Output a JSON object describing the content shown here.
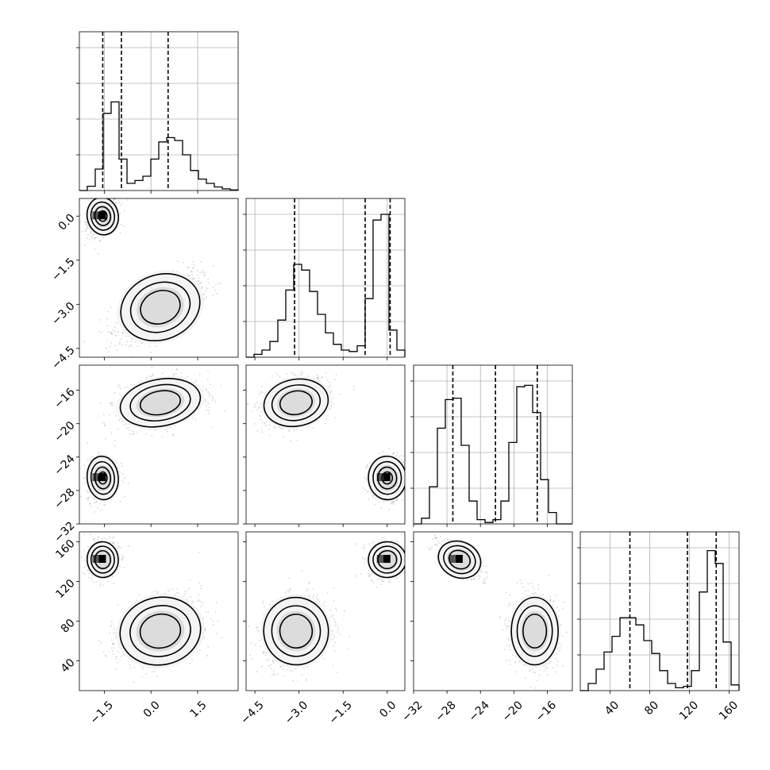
{
  "chart_data": {
    "type": "corner",
    "title": "",
    "parameters": [
      {
        "label": "",
        "range": [
          -2.3,
          2.8
        ],
        "ticks": [
          -1.5,
          0.0,
          1.5
        ],
        "tick_labels": [
          "−1.5",
          "0.0",
          "1.5"
        ],
        "quantiles": [
          -1.55,
          -0.95,
          0.55
        ]
      },
      {
        "label": "",
        "range": [
          -4.8,
          0.6
        ],
        "ticks": [
          -4.5,
          -3.0,
          -1.5,
          0.0
        ],
        "tick_labels": [
          "−4.5",
          "−3.0",
          "−1.5",
          "0.0"
        ],
        "quantiles": [
          -3.15,
          -0.75,
          0.1
        ]
      },
      {
        "label": "",
        "range": [
          -32,
          -13
        ],
        "ticks": [
          -32,
          -28,
          -24,
          -20,
          -16
        ],
        "tick_labels": [
          "−32",
          "−28",
          "−24",
          "−20",
          "−16"
        ],
        "quantiles": [
          -27.3,
          -22.2,
          -17.2
        ]
      },
      {
        "label": "",
        "range": [
          10,
          170
        ],
        "ticks": [
          40,
          80,
          120,
          160
        ],
        "tick_labels": [
          "40",
          "80",
          "120",
          "160"
        ],
        "quantiles": [
          60,
          118,
          147
        ]
      }
    ],
    "histograms": [
      [
        0.0,
        0.03,
        0.15,
        0.54,
        0.62,
        0.22,
        0.05,
        0.07,
        0.1,
        0.22,
        0.34,
        0.37,
        0.35,
        0.25,
        0.14,
        0.08,
        0.05,
        0.025,
        0.012,
        0.004
      ],
      [
        0.0,
        0.02,
        0.05,
        0.11,
        0.26,
        0.47,
        0.65,
        0.61,
        0.46,
        0.3,
        0.17,
        0.09,
        0.05,
        0.04,
        0.08,
        0.41,
        0.96,
        1.0,
        0.19,
        0.05
      ],
      [
        0.0,
        0.04,
        0.26,
        0.67,
        0.87,
        0.88,
        0.55,
        0.16,
        0.03,
        0.01,
        0.03,
        0.16,
        0.57,
        0.96,
        0.97,
        0.78,
        0.31,
        0.08,
        0.0,
        0.0
      ],
      [
        0.0,
        0.05,
        0.15,
        0.27,
        0.38,
        0.51,
        0.51,
        0.46,
        0.35,
        0.26,
        0.14,
        0.05,
        0.02,
        0.03,
        0.14,
        0.69,
        0.98,
        0.89,
        0.34,
        0.04
      ]
    ],
    "modes": [
      {
        "weight": 0.35,
        "mean": [
          -1.55,
          0.0,
          -26.5,
          142
        ],
        "sd": [
          0.25,
          0.32,
          1.3,
          9
        ]
      },
      {
        "weight": 0.65,
        "mean": [
          0.3,
          -3.1,
          -17.5,
          70
        ],
        "sd": [
          0.65,
          0.55,
          1.4,
          17
        ]
      }
    ],
    "pair_correlation": {
      "mode1": [
        [
          1,
          0.3,
          0.15,
          0.1
        ],
        [
          0.3,
          1,
          0.1,
          0.1
        ],
        [
          0.15,
          0.1,
          1,
          -0.7
        ],
        [
          0.1,
          0.1,
          -0.7,
          1
        ]
      ],
      "mode2": [
        [
          1,
          0.6,
          0.3,
          0.3
        ],
        [
          0.6,
          1,
          0.3,
          0.2
        ],
        [
          0.3,
          0.3,
          1,
          0.0
        ],
        [
          0.3,
          0.2,
          0.0,
          1
        ]
      ]
    },
    "contour_levels_sigma": [
      0.5,
      1.0,
      1.5,
      2.0
    ],
    "grid": true,
    "quantile_line_style": "dashed",
    "point_color": "#000000",
    "line_color": "#000000"
  }
}
